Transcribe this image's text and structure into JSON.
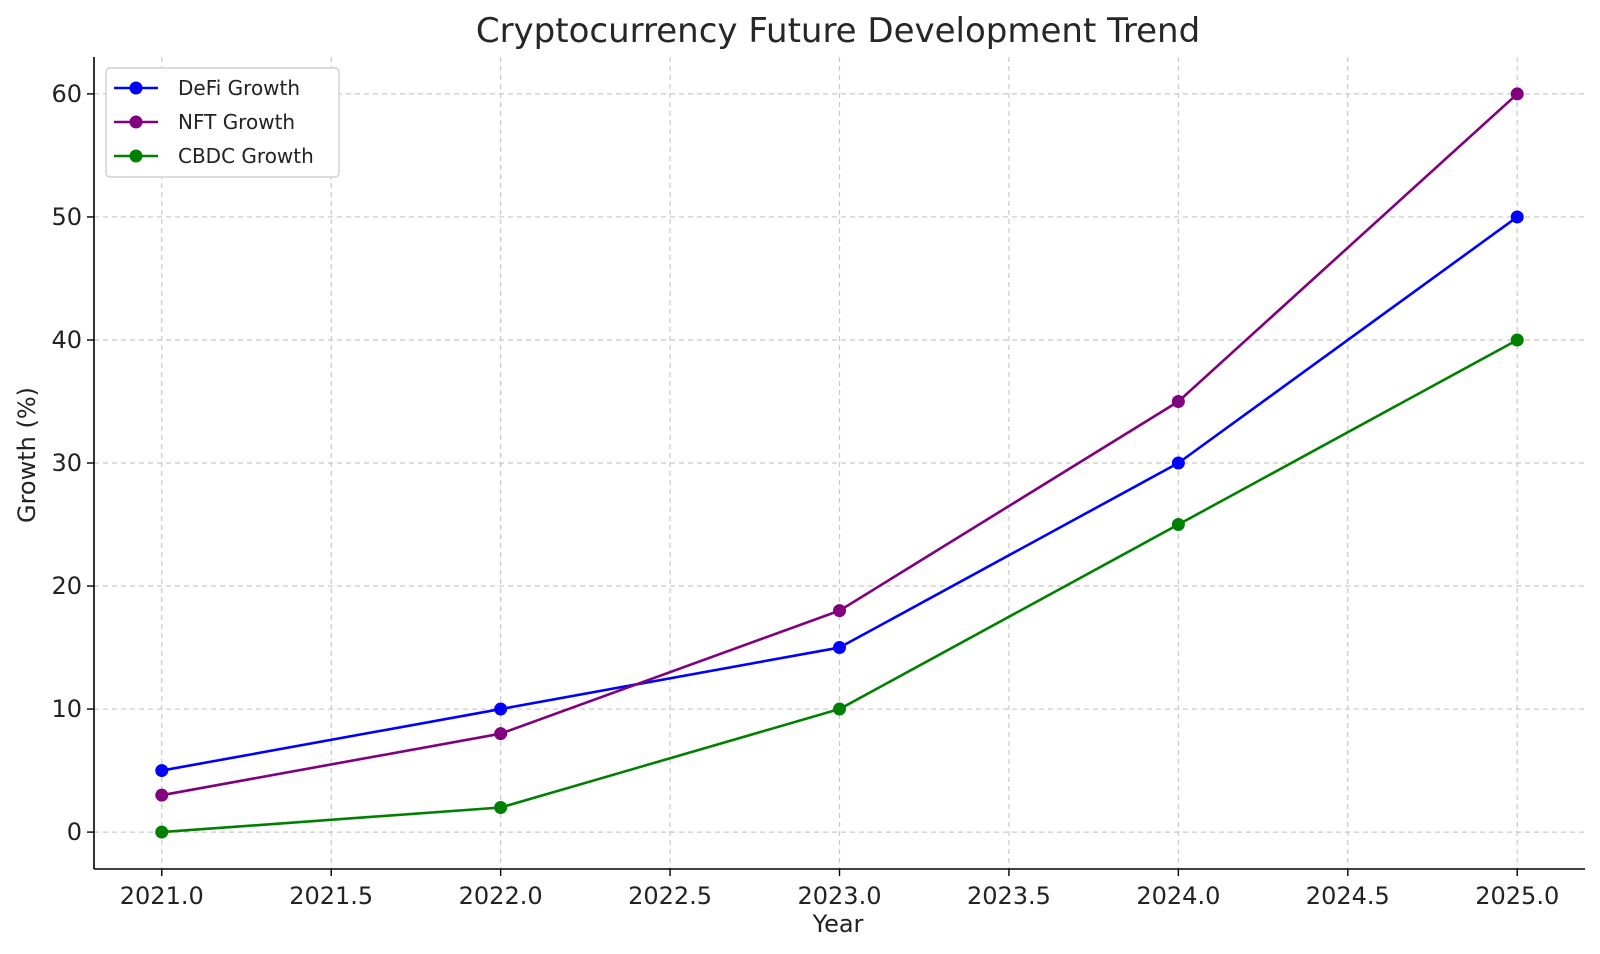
{
  "chart_data": {
    "type": "line",
    "title": "Cryptocurrency Future Development Trend",
    "xlabel": "Year",
    "ylabel": "Growth (%)",
    "x": [
      2021,
      2022,
      2023,
      2024,
      2025
    ],
    "xlim": [
      2020.8,
      2025.2
    ],
    "ylim": [
      -3,
      63
    ],
    "x_ticks": [
      2021.0,
      2021.5,
      2022.0,
      2022.5,
      2023.0,
      2023.5,
      2024.0,
      2024.5,
      2025.0
    ],
    "x_tick_labels": [
      "2021.0",
      "2021.5",
      "2022.0",
      "2022.5",
      "2023.0",
      "2023.5",
      "2024.0",
      "2024.5",
      "2025.0"
    ],
    "y_ticks": [
      0,
      10,
      20,
      30,
      40,
      50,
      60
    ],
    "y_tick_labels": [
      "0",
      "10",
      "20",
      "30",
      "40",
      "50",
      "60"
    ],
    "grid": true,
    "legend_position": "top-left",
    "series": [
      {
        "name": "DeFi Growth",
        "color": "#0000ff",
        "values": [
          5,
          10,
          15,
          30,
          50
        ]
      },
      {
        "name": "NFT Growth",
        "color": "#800080",
        "values": [
          3,
          8,
          18,
          35,
          60
        ]
      },
      {
        "name": "CBDC Growth",
        "color": "#008000",
        "values": [
          0,
          2,
          10,
          25,
          40
        ]
      }
    ]
  }
}
